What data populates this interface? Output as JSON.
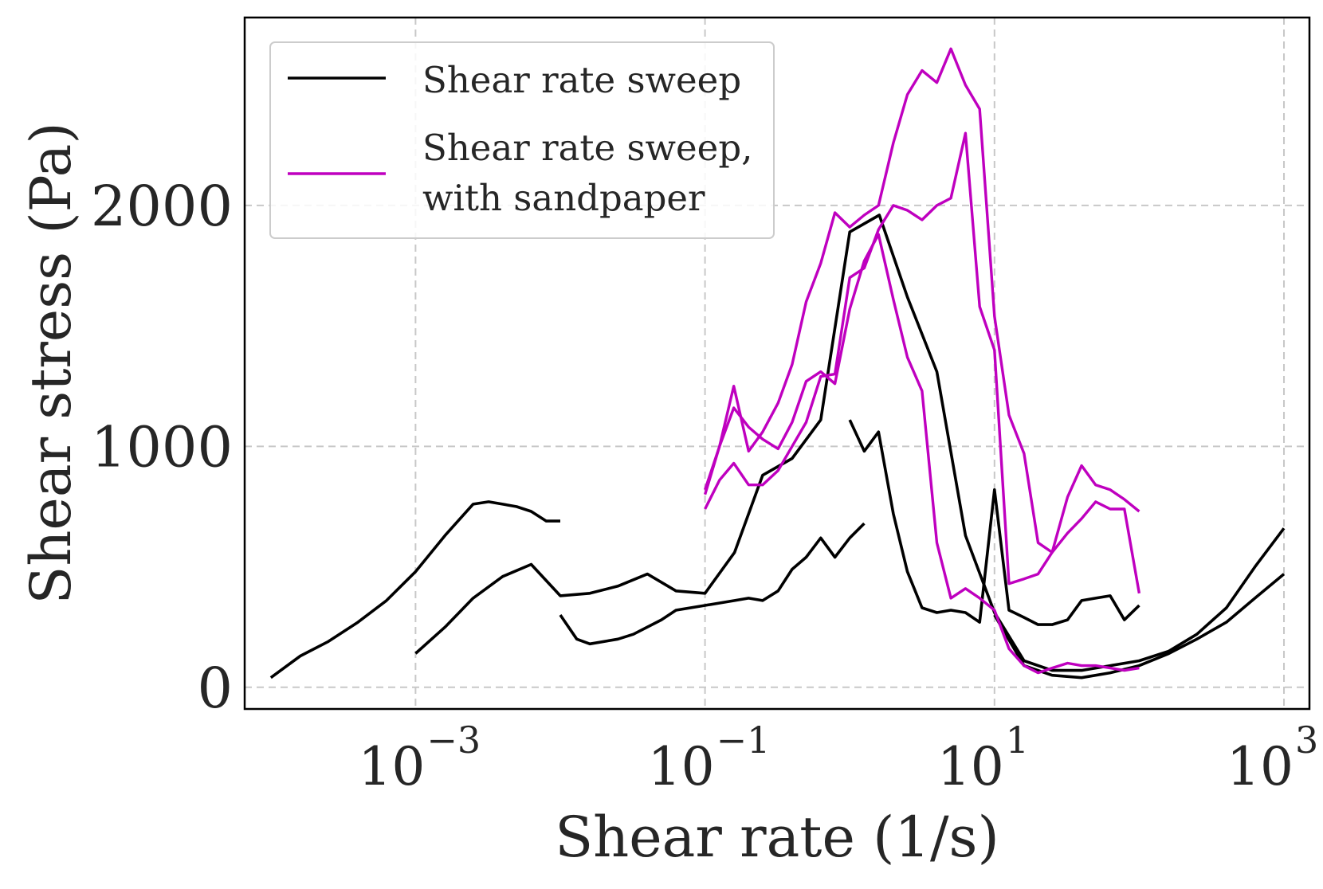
{
  "chart_data": {
    "type": "line",
    "xlabel": "Shear rate (1/s)",
    "ylabel": "Shear stress (Pa)",
    "xscale": "log",
    "xlim": [
      6.6e-05,
      1500
    ],
    "ylim": [
      -90,
      2780
    ],
    "grid": true,
    "legend_position": "top-left",
    "x_ticks": [
      {
        "value": 0.001,
        "base": "10",
        "exp": "−3"
      },
      {
        "value": 0.1,
        "base": "10",
        "exp": "−1"
      },
      {
        "value": 10,
        "base": "10",
        "exp": "1"
      },
      {
        "value": 1000,
        "base": "10",
        "exp": "3"
      }
    ],
    "y_ticks": [
      {
        "value": 0,
        "label": "0"
      },
      {
        "value": 1000,
        "label": "1000"
      },
      {
        "value": 2000,
        "label": "2000"
      }
    ],
    "legend": [
      {
        "label_lines": [
          "Shear rate sweep"
        ],
        "color": "#000000"
      },
      {
        "label_lines": [
          "Shear rate sweep,",
          "with sandpaper"
        ],
        "color": "#bf00bf"
      }
    ],
    "series": [
      {
        "group": 0,
        "color": "#000000",
        "points": [
          [
            0.0001,
            40
          ],
          [
            0.00016,
            130
          ],
          [
            0.00025,
            190
          ],
          [
            0.0004,
            270
          ],
          [
            0.00063,
            360
          ],
          [
            0.001,
            480
          ],
          [
            0.0016,
            630
          ],
          [
            0.0025,
            760
          ],
          [
            0.0032,
            770
          ],
          [
            0.004,
            760
          ],
          [
            0.005,
            750
          ],
          [
            0.0063,
            730
          ],
          [
            0.008,
            690
          ],
          [
            0.01,
            690
          ]
        ]
      },
      {
        "group": 0,
        "color": "#000000",
        "points": [
          [
            0.001,
            140
          ],
          [
            0.0016,
            250
          ],
          [
            0.0025,
            370
          ],
          [
            0.004,
            460
          ],
          [
            0.0063,
            510
          ],
          [
            0.01,
            380
          ],
          [
            0.016,
            390
          ],
          [
            0.025,
            420
          ],
          [
            0.04,
            470
          ],
          [
            0.063,
            400
          ],
          [
            0.1,
            390
          ],
          [
            0.16,
            560
          ],
          [
            0.25,
            880
          ],
          [
            0.4,
            950
          ],
          [
            0.63,
            1110
          ],
          [
            1,
            1890
          ],
          [
            1.6,
            1960
          ],
          [
            2.5,
            1620
          ],
          [
            4,
            1310
          ],
          [
            6.3,
            630
          ],
          [
            10,
            310
          ],
          [
            16,
            110
          ],
          [
            25,
            70
          ],
          [
            40,
            70
          ],
          [
            63,
            90
          ],
          [
            100,
            110
          ],
          [
            160,
            150
          ],
          [
            250,
            220
          ],
          [
            400,
            330
          ],
          [
            630,
            500
          ],
          [
            1000,
            660
          ]
        ]
      },
      {
        "group": 0,
        "color": "#000000",
        "points": [
          [
            0.01,
            300
          ],
          [
            0.013,
            200
          ],
          [
            0.016,
            180
          ],
          [
            0.025,
            200
          ],
          [
            0.032,
            220
          ],
          [
            0.05,
            280
          ],
          [
            0.063,
            320
          ],
          [
            0.1,
            340
          ],
          [
            0.16,
            360
          ],
          [
            0.2,
            370
          ],
          [
            0.25,
            360
          ],
          [
            0.32,
            400
          ],
          [
            0.4,
            490
          ],
          [
            0.5,
            540
          ],
          [
            0.63,
            620
          ],
          [
            0.79,
            540
          ],
          [
            1,
            620
          ],
          [
            1.26,
            680
          ]
        ]
      },
      {
        "group": 0,
        "color": "#000000",
        "points": [
          [
            1,
            1110
          ],
          [
            1.26,
            980
          ],
          [
            1.58,
            1060
          ],
          [
            2,
            720
          ],
          [
            2.5,
            480
          ],
          [
            3.16,
            330
          ],
          [
            4,
            310
          ],
          [
            5,
            320
          ],
          [
            6.3,
            310
          ],
          [
            7.9,
            270
          ],
          [
            10,
            820
          ],
          [
            12.6,
            320
          ],
          [
            16,
            290
          ],
          [
            20,
            260
          ],
          [
            25,
            260
          ],
          [
            32,
            280
          ],
          [
            40,
            360
          ],
          [
            50,
            370
          ],
          [
            63,
            380
          ],
          [
            79,
            280
          ],
          [
            100,
            340
          ]
        ]
      },
      {
        "group": 0,
        "color": "#000000",
        "points": [
          [
            10,
            300
          ],
          [
            16,
            90
          ],
          [
            25,
            50
          ],
          [
            40,
            40
          ],
          [
            63,
            60
          ],
          [
            100,
            90
          ],
          [
            160,
            140
          ],
          [
            250,
            200
          ],
          [
            400,
            270
          ],
          [
            630,
            370
          ],
          [
            1000,
            470
          ]
        ]
      },
      {
        "group": 1,
        "color": "#bf00bf",
        "points": [
          [
            0.1,
            820
          ],
          [
            0.126,
            1000
          ],
          [
            0.158,
            1250
          ],
          [
            0.2,
            980
          ],
          [
            0.25,
            1060
          ],
          [
            0.32,
            1180
          ],
          [
            0.4,
            1340
          ],
          [
            0.5,
            1600
          ],
          [
            0.63,
            1760
          ],
          [
            0.79,
            1970
          ],
          [
            1,
            1910
          ],
          [
            1.26,
            1960
          ],
          [
            1.58,
            2000
          ],
          [
            2,
            2260
          ],
          [
            2.5,
            2460
          ],
          [
            3.16,
            2560
          ],
          [
            4,
            2510
          ],
          [
            5,
            2650
          ],
          [
            6.3,
            2500
          ],
          [
            7.9,
            2400
          ],
          [
            10,
            1540
          ],
          [
            12.6,
            1130
          ],
          [
            16,
            970
          ],
          [
            20,
            600
          ],
          [
            25,
            560
          ],
          [
            32,
            790
          ],
          [
            40,
            920
          ],
          [
            50,
            840
          ],
          [
            63,
            820
          ],
          [
            79,
            780
          ],
          [
            100,
            730
          ]
        ]
      },
      {
        "group": 1,
        "color": "#bf00bf",
        "points": [
          [
            0.1,
            740
          ],
          [
            0.126,
            860
          ],
          [
            0.158,
            930
          ],
          [
            0.2,
            840
          ],
          [
            0.25,
            840
          ],
          [
            0.32,
            900
          ],
          [
            0.4,
            1000
          ],
          [
            0.5,
            1100
          ],
          [
            0.63,
            1290
          ],
          [
            0.79,
            1300
          ],
          [
            1,
            1700
          ],
          [
            1.26,
            1740
          ],
          [
            1.58,
            1900
          ],
          [
            2,
            2000
          ],
          [
            2.5,
            1980
          ],
          [
            3.16,
            1940
          ],
          [
            4,
            2000
          ],
          [
            5,
            2030
          ],
          [
            6.3,
            2300
          ],
          [
            7.9,
            1580
          ],
          [
            10,
            1400
          ],
          [
            12.6,
            430
          ],
          [
            16,
            450
          ],
          [
            20,
            470
          ],
          [
            25,
            560
          ],
          [
            32,
            640
          ],
          [
            40,
            700
          ],
          [
            50,
            770
          ],
          [
            63,
            740
          ],
          [
            79,
            740
          ],
          [
            100,
            390
          ]
        ]
      },
      {
        "group": 1,
        "color": "#bf00bf",
        "points": [
          [
            0.1,
            800
          ],
          [
            0.126,
            1000
          ],
          [
            0.158,
            1160
          ],
          [
            0.2,
            1080
          ],
          [
            0.25,
            1030
          ],
          [
            0.32,
            990
          ],
          [
            0.4,
            1100
          ],
          [
            0.5,
            1270
          ],
          [
            0.63,
            1310
          ],
          [
            0.79,
            1260
          ],
          [
            1,
            1570
          ],
          [
            1.26,
            1770
          ],
          [
            1.58,
            1880
          ],
          [
            2,
            1610
          ],
          [
            2.5,
            1370
          ],
          [
            3.16,
            1230
          ],
          [
            4,
            600
          ],
          [
            5,
            370
          ],
          [
            6.3,
            410
          ],
          [
            7.9,
            370
          ],
          [
            10,
            320
          ],
          [
            12.6,
            160
          ],
          [
            16,
            90
          ],
          [
            20,
            60
          ],
          [
            25,
            80
          ],
          [
            32,
            100
          ],
          [
            40,
            90
          ],
          [
            50,
            90
          ],
          [
            63,
            80
          ],
          [
            79,
            70
          ],
          [
            100,
            80
          ]
        ]
      }
    ]
  }
}
